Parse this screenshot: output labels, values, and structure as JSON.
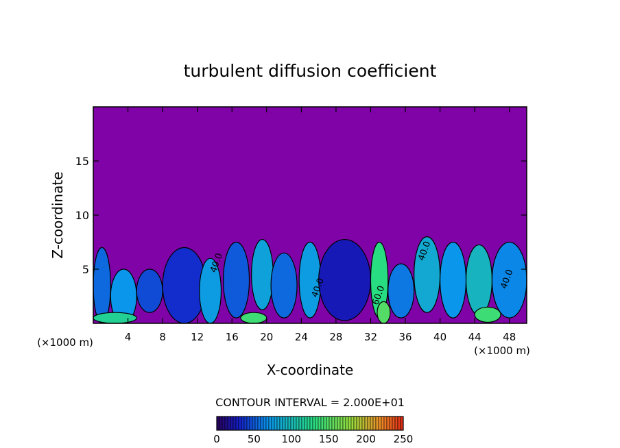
{
  "chart_data": {
    "type": "heatmap",
    "title": "turbulent diffusion coefficient",
    "xlabel": "X-coordinate",
    "ylabel": "Z-coordinate",
    "x_unit_left": "(×1000 m)",
    "x_unit_right": "(×1000 m)",
    "xlim": [
      0,
      50
    ],
    "ylim": [
      0,
      20
    ],
    "x_ticks": [
      4,
      8,
      12,
      16,
      20,
      24,
      28,
      32,
      36,
      40,
      44,
      48
    ],
    "y_ticks": [
      5,
      10,
      15
    ],
    "background_value": 0,
    "contour_interval_text": "CONTOUR INTERVAL = 2.000E+01",
    "contour_labels": [
      {
        "text": "40.0",
        "x": 14.5,
        "z": 5.5
      },
      {
        "text": "40.0",
        "x": 26.2,
        "z": 3.2
      },
      {
        "text": "60.0",
        "x": 33.2,
        "z": 2.5
      },
      {
        "text": "40.0",
        "x": 38.5,
        "z": 6.6
      },
      {
        "text": "40.0",
        "x": 48.0,
        "z": 4.0
      }
    ],
    "field_cells": [
      {
        "x": 1.0,
        "z": 3.5,
        "w": 2.0,
        "h": 7.0,
        "value": 55
      },
      {
        "x": 3.5,
        "z": 2.5,
        "w": 3.0,
        "h": 5.0,
        "value": 70
      },
      {
        "x": 6.5,
        "z": 3.0,
        "w": 3.0,
        "h": 4.0,
        "value": 45
      },
      {
        "x": 10.5,
        "z": 3.5,
        "w": 5.0,
        "h": 7.0,
        "value": 35
      },
      {
        "x": 13.5,
        "z": 3.0,
        "w": 2.5,
        "h": 6.0,
        "value": 75
      },
      {
        "x": 16.5,
        "z": 4.0,
        "w": 3.0,
        "h": 7.0,
        "value": 50
      },
      {
        "x": 19.5,
        "z": 4.5,
        "w": 2.5,
        "h": 6.5,
        "value": 80
      },
      {
        "x": 22.0,
        "z": 3.5,
        "w": 3.0,
        "h": 6.0,
        "value": 55
      },
      {
        "x": 25.0,
        "z": 4.0,
        "w": 2.5,
        "h": 7.0,
        "value": 75
      },
      {
        "x": 29.0,
        "z": 4.0,
        "w": 6.0,
        "h": 7.5,
        "value": 25
      },
      {
        "x": 33.0,
        "z": 4.0,
        "w": 2.0,
        "h": 7.0,
        "value": 130
      },
      {
        "x": 35.5,
        "z": 3.0,
        "w": 3.0,
        "h": 5.0,
        "value": 60
      },
      {
        "x": 38.5,
        "z": 4.5,
        "w": 3.0,
        "h": 7.0,
        "value": 85
      },
      {
        "x": 41.5,
        "z": 4.0,
        "w": 3.0,
        "h": 7.0,
        "value": 70
      },
      {
        "x": 44.5,
        "z": 4.0,
        "w": 3.0,
        "h": 6.5,
        "value": 95
      },
      {
        "x": 48.0,
        "z": 4.0,
        "w": 4.0,
        "h": 7.0,
        "value": 65
      },
      {
        "x": 2.5,
        "z": 0.5,
        "w": 5.0,
        "h": 1.0,
        "value": 120
      },
      {
        "x": 18.5,
        "z": 0.5,
        "w": 3.0,
        "h": 1.0,
        "value": 140
      },
      {
        "x": 33.5,
        "z": 1.0,
        "w": 1.5,
        "h": 2.0,
        "value": 150
      },
      {
        "x": 45.5,
        "z": 0.8,
        "w": 3.0,
        "h": 1.4,
        "value": 140
      }
    ],
    "colorbar": {
      "ticks": [
        0,
        50,
        100,
        150,
        200,
        250
      ],
      "range": [
        0,
        250
      ]
    }
  }
}
